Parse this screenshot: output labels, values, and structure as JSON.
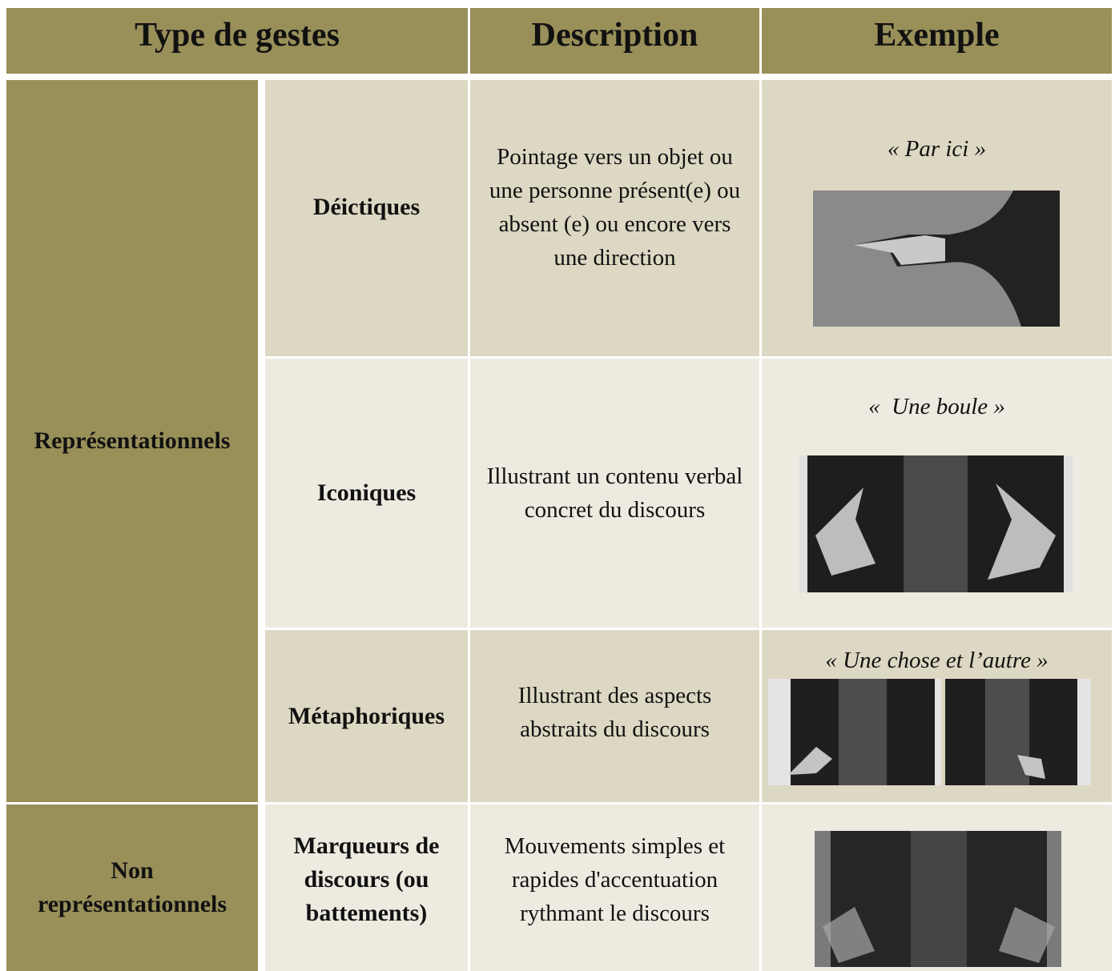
{
  "table": {
    "header": [
      "Type de gestes",
      "Description",
      "Exemple"
    ],
    "groups": [
      {
        "label": "Représentationnels",
        "rows": [
          {
            "type": "Déictiques",
            "description": "Pointage vers un objet ou une personne présent(e) ou absent (e) ou encore vers une direction",
            "example": "« Par ici »"
          },
          {
            "type": "Iconiques",
            "description": "Illustrant un contenu verbal concret du discours",
            "example": "«  Une boule »"
          },
          {
            "type": "Métaphoriques",
            "description": "Illustrant des aspects abstraits du discours",
            "example": "« Une chose et l’autre »"
          }
        ]
      },
      {
        "label": "Non représentationnels",
        "rows": [
          {
            "type": "Marqueurs de discours (ou battements)",
            "description": "Mouvements simples et rapides d'accentuation rythmant le discours"
          }
        ]
      }
    ]
  }
}
